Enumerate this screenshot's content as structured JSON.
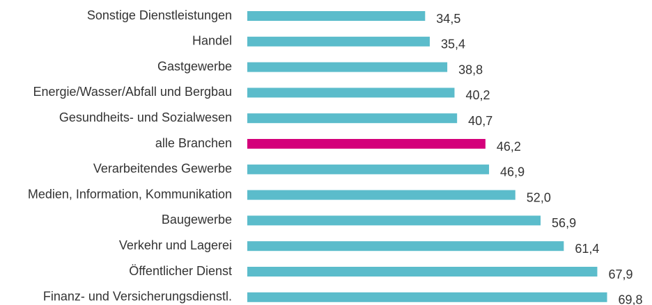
{
  "chart_data": {
    "type": "barh",
    "categories": [
      "Sonstige Dienstleistungen",
      "Handel",
      "Gastgewerbe",
      "Energie/Wasser/Abfall und Bergbau",
      "Gesundheits- und Sozialwesen",
      "alle Branchen",
      "Verarbeitendes Gewerbe",
      "Medien, Information, Kommunikation",
      "Baugewerbe",
      "Verkehr und Lagerei",
      "Öffentlicher Dienst",
      "Finanz- und Versicherungsdienstl."
    ],
    "values": [
      34.5,
      35.4,
      38.8,
      40.2,
      40.7,
      46.2,
      46.9,
      52.0,
      56.9,
      61.4,
      67.9,
      69.8
    ],
    "value_labels": [
      "34,5",
      "35,4",
      "38,8",
      "40,2",
      "40,7",
      "46,2",
      "46,9",
      "52,0",
      "56,9",
      "61,4",
      "67,9",
      "69,8"
    ],
    "colors": [
      "#5bbccb",
      "#5bbccb",
      "#5bbccb",
      "#5bbccb",
      "#5bbccb",
      "#d4007a",
      "#5bbccb",
      "#5bbccb",
      "#5bbccb",
      "#5bbccb",
      "#5bbccb",
      "#5bbccb"
    ]
  }
}
